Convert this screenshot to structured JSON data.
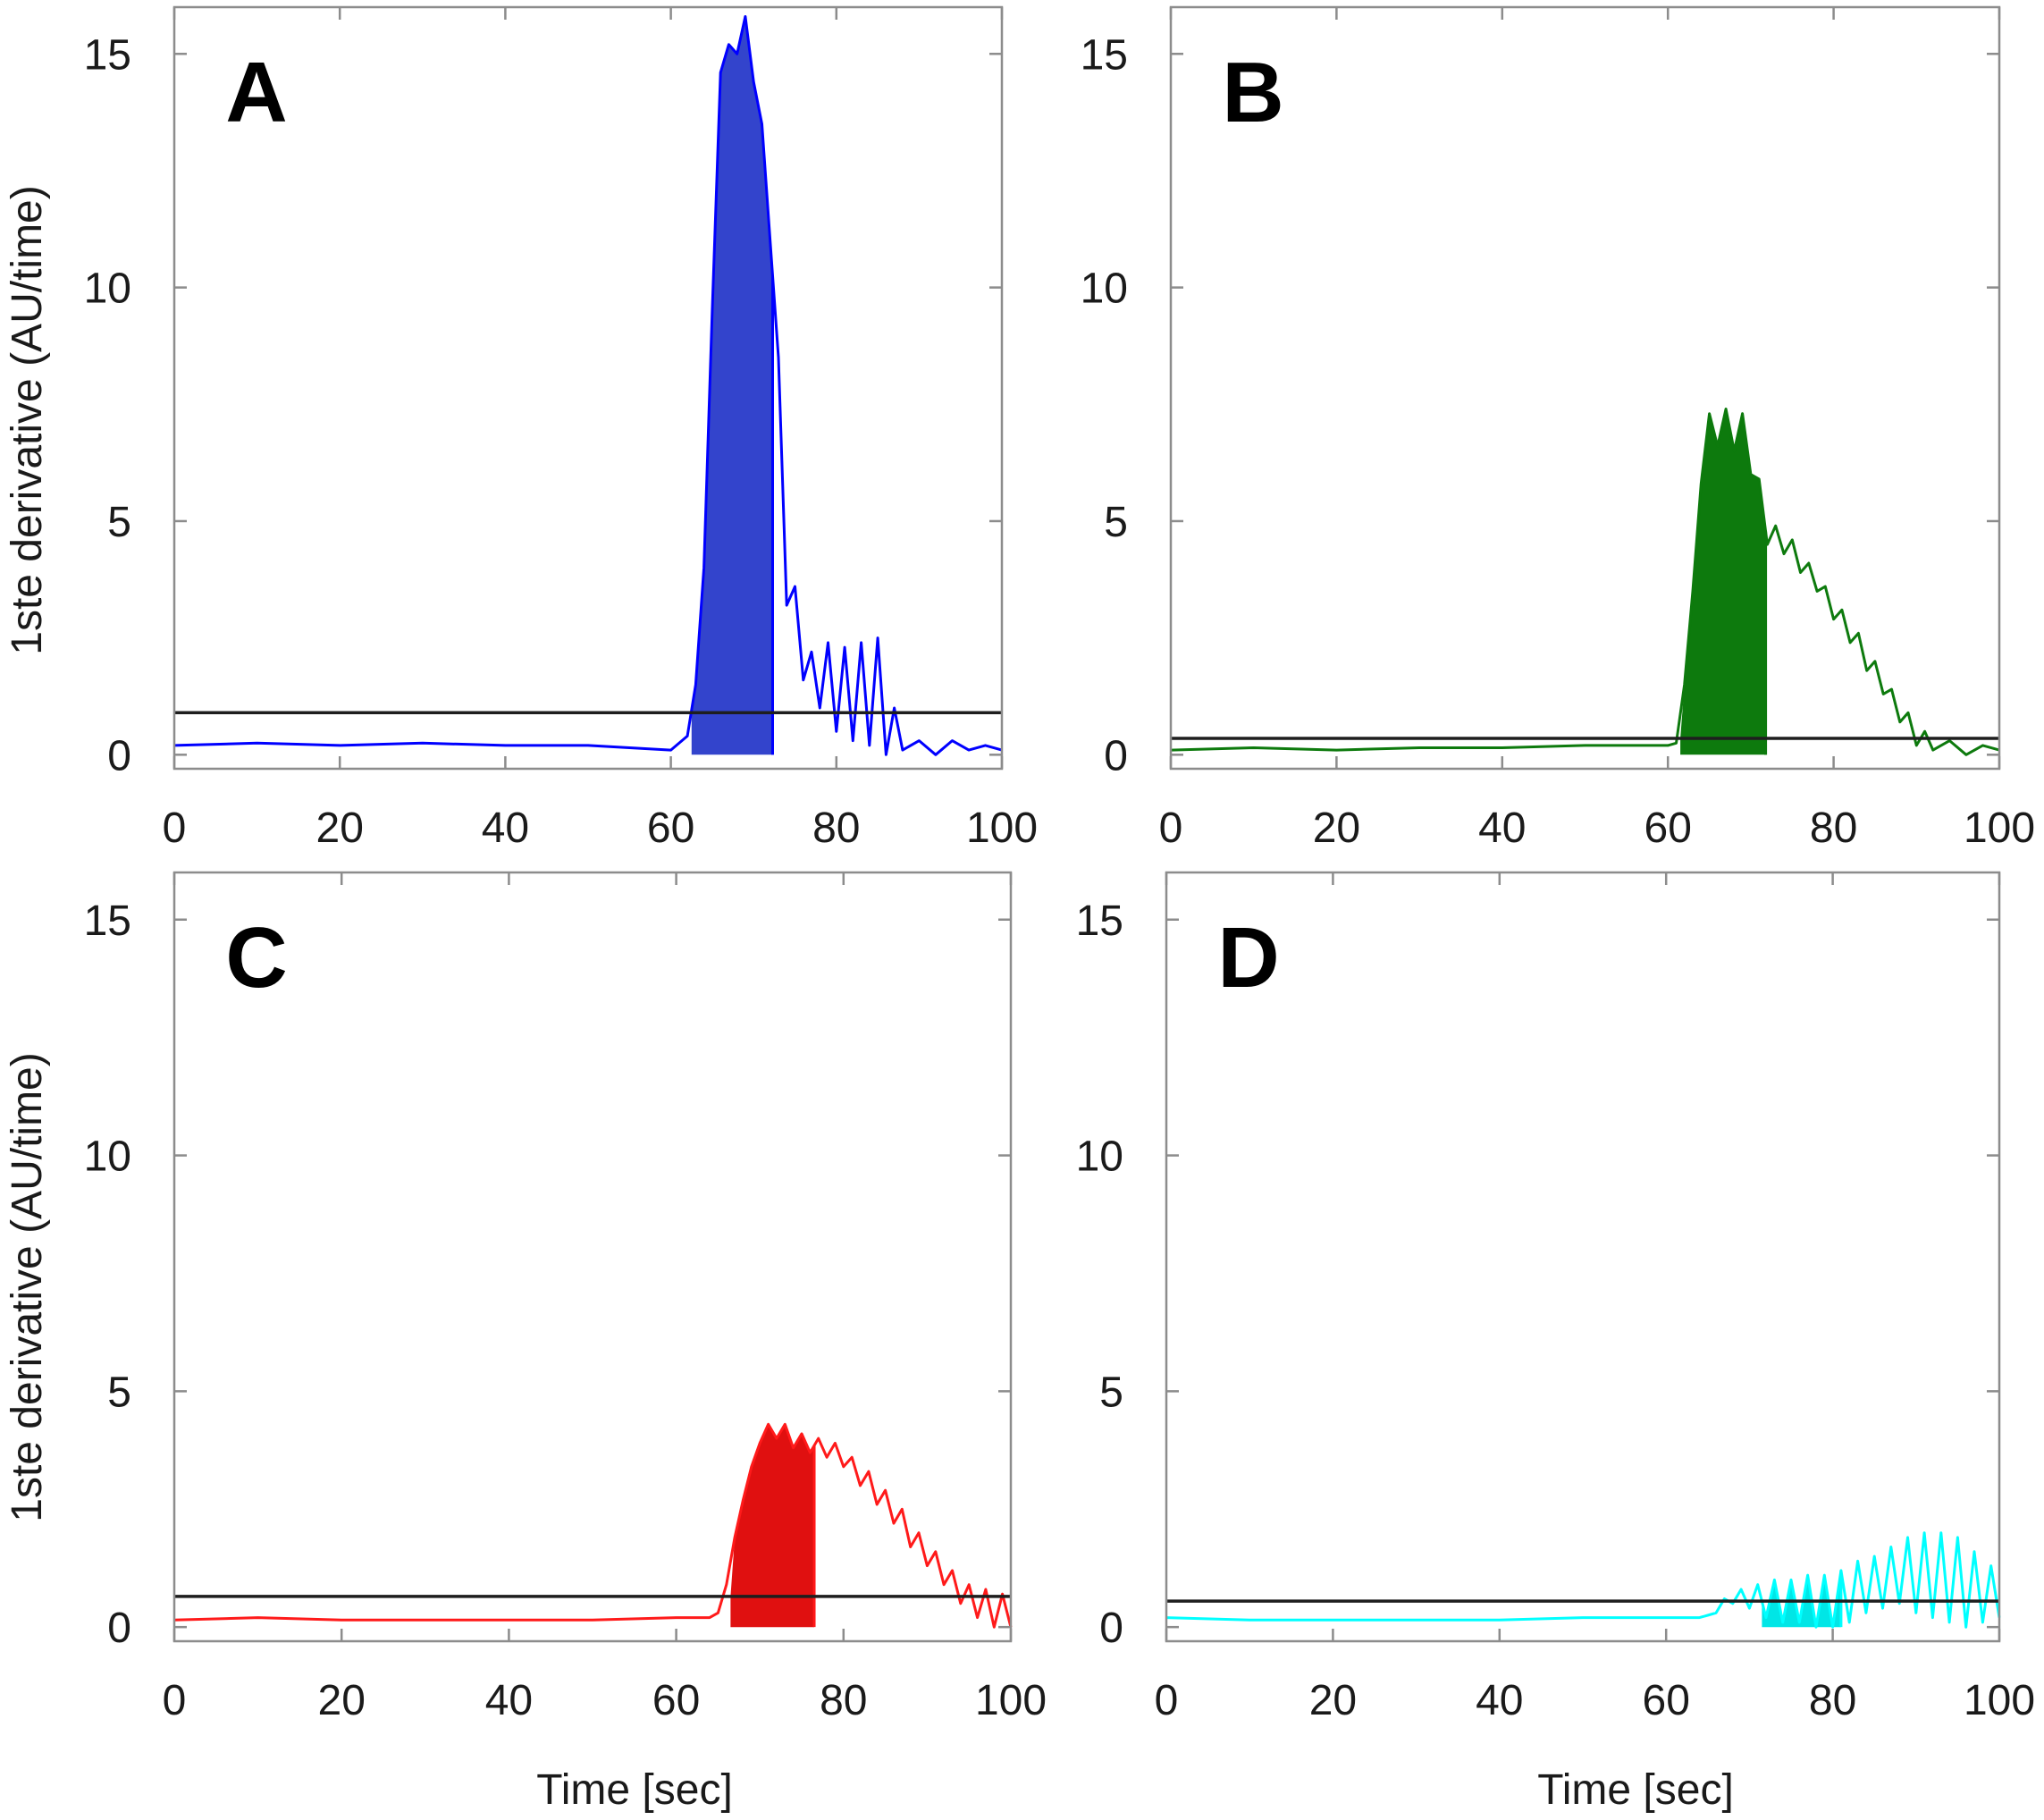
{
  "figure": {
    "shared_ylabel": "1ste derivative (AU/time)",
    "shared_xlabel": "Time [sec]"
  },
  "chart_data": [
    {
      "type": "line",
      "panel": "A",
      "color": "#0000ff",
      "fill_color": "#3344cc",
      "xlabel": "",
      "ylabel": "1ste derivative (AU/time)",
      "xlim": [
        0,
        100
      ],
      "ylim": [
        -0.3,
        16
      ],
      "xticks": [
        0,
        20,
        40,
        60,
        80,
        100
      ],
      "yticks": [
        0,
        5,
        10,
        15
      ],
      "threshold": 0.9,
      "filled_region": [
        62.5,
        72.3
      ],
      "x": [
        0,
        10,
        20,
        30,
        40,
        50,
        60,
        62,
        63,
        64,
        65,
        66,
        67,
        68,
        69,
        70,
        71,
        72,
        73,
        74,
        75,
        76,
        77,
        78,
        79,
        80,
        81,
        82,
        83,
        84,
        85,
        86,
        87,
        88,
        90,
        92,
        94,
        96,
        98,
        100
      ],
      "y": [
        0.2,
        0.25,
        0.2,
        0.25,
        0.2,
        0.2,
        0.1,
        0.4,
        1.5,
        4.0,
        9.5,
        14.6,
        15.2,
        15.0,
        15.8,
        14.4,
        13.5,
        11.0,
        8.5,
        3.2,
        3.6,
        1.6,
        2.2,
        1.0,
        2.4,
        0.5,
        2.3,
        0.3,
        2.4,
        0.2,
        2.5,
        0.0,
        1.0,
        0.1,
        0.3,
        0.0,
        0.3,
        0.1,
        0.2,
        0.1
      ]
    },
    {
      "type": "line",
      "panel": "B",
      "color": "#0d7a0d",
      "fill_color": "#0d7a0d",
      "xlabel": "",
      "ylabel": "",
      "xlim": [
        0,
        100
      ],
      "ylim": [
        -0.3,
        16
      ],
      "xticks": [
        0,
        20,
        40,
        60,
        80,
        100
      ],
      "yticks": [
        0,
        5,
        10,
        15
      ],
      "threshold": 0.35,
      "filled_region": [
        61.5,
        71.8
      ],
      "x": [
        0,
        10,
        20,
        30,
        40,
        50,
        60,
        61,
        62,
        63,
        64,
        65,
        66,
        67,
        68,
        69,
        70,
        71,
        72,
        73,
        74,
        75,
        76,
        77,
        78,
        79,
        80,
        81,
        82,
        83,
        84,
        85,
        86,
        87,
        88,
        89,
        90,
        91,
        92,
        94,
        96,
        98,
        100
      ],
      "y": [
        0.1,
        0.15,
        0.1,
        0.15,
        0.15,
        0.2,
        0.2,
        0.25,
        1.5,
        3.5,
        5.8,
        7.3,
        6.6,
        7.4,
        6.5,
        7.3,
        6.0,
        5.9,
        4.5,
        4.9,
        4.3,
        4.6,
        3.9,
        4.1,
        3.5,
        3.6,
        2.9,
        3.1,
        2.4,
        2.6,
        1.8,
        2.0,
        1.3,
        1.4,
        0.7,
        0.9,
        0.2,
        0.5,
        0.1,
        0.3,
        0.0,
        0.2,
        0.1
      ]
    },
    {
      "type": "line",
      "panel": "C",
      "color": "#ff1a1a",
      "fill_color": "#e01010",
      "xlabel": "Time [sec]",
      "ylabel": "1ste derivative (AU/time)",
      "xlim": [
        0,
        100
      ],
      "ylim": [
        -0.3,
        16
      ],
      "xticks": [
        0,
        20,
        40,
        60,
        80,
        100
      ],
      "yticks": [
        0,
        5,
        10,
        15
      ],
      "threshold": 0.65,
      "filled_region": [
        66.5,
        76.5
      ],
      "x": [
        0,
        10,
        20,
        30,
        40,
        50,
        60,
        64,
        65,
        66,
        67,
        68,
        69,
        70,
        71,
        72,
        73,
        74,
        75,
        76,
        77,
        78,
        79,
        80,
        81,
        82,
        83,
        84,
        85,
        86,
        87,
        88,
        89,
        90,
        91,
        92,
        93,
        94,
        95,
        96,
        97,
        98,
        99,
        100
      ],
      "y": [
        0.15,
        0.2,
        0.15,
        0.15,
        0.15,
        0.15,
        0.2,
        0.2,
        0.3,
        0.9,
        1.9,
        2.7,
        3.4,
        3.9,
        4.3,
        4.0,
        4.3,
        3.8,
        4.1,
        3.7,
        4.0,
        3.6,
        3.9,
        3.4,
        3.6,
        3.0,
        3.3,
        2.6,
        2.9,
        2.2,
        2.5,
        1.7,
        2.0,
        1.3,
        1.6,
        0.9,
        1.2,
        0.5,
        0.9,
        0.2,
        0.8,
        0.0,
        0.7,
        0.0
      ]
    },
    {
      "type": "line",
      "panel": "D",
      "color": "#00ffff",
      "fill_color": "#00e6e6",
      "xlabel": "Time [sec]",
      "ylabel": "",
      "xlim": [
        0,
        100
      ],
      "ylim": [
        -0.3,
        16
      ],
      "xticks": [
        0,
        20,
        40,
        60,
        80,
        100
      ],
      "yticks": [
        0,
        5,
        10,
        15
      ],
      "threshold": 0.55,
      "filled_region": [
        71.5,
        81.0
      ],
      "x": [
        0,
        10,
        20,
        30,
        40,
        50,
        60,
        64,
        65,
        66,
        67,
        68,
        69,
        70,
        71,
        72,
        73,
        74,
        75,
        76,
        77,
        78,
        79,
        80,
        81,
        82,
        83,
        84,
        85,
        86,
        87,
        88,
        89,
        90,
        91,
        92,
        93,
        94,
        95,
        96,
        97,
        98,
        99,
        100
      ],
      "y": [
        0.2,
        0.15,
        0.15,
        0.15,
        0.15,
        0.2,
        0.2,
        0.2,
        0.25,
        0.3,
        0.6,
        0.5,
        0.8,
        0.4,
        0.9,
        0.2,
        1.0,
        0.1,
        1.0,
        0.1,
        1.1,
        0.0,
        1.1,
        0.0,
        1.2,
        0.1,
        1.4,
        0.3,
        1.5,
        0.4,
        1.7,
        0.5,
        1.9,
        0.3,
        2.0,
        0.2,
        2.0,
        0.1,
        1.9,
        0.0,
        1.6,
        0.1,
        1.3,
        0.2
      ]
    }
  ]
}
